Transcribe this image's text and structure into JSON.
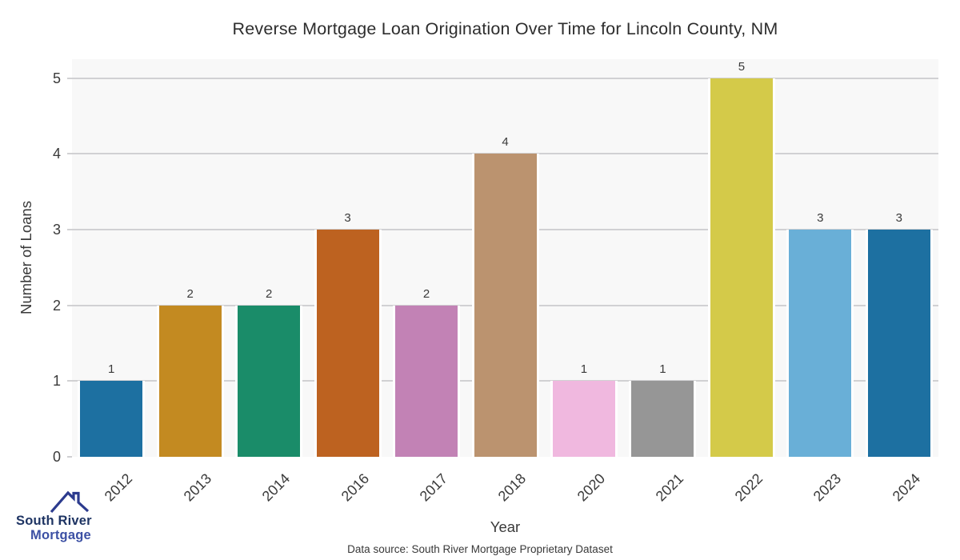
{
  "chart_data": {
    "type": "bar",
    "title": "Reverse Mortgage Loan Origination Over Time for Lincoln County, NM",
    "xlabel": "Year",
    "ylabel": "Number of Loans",
    "categories": [
      "2012",
      "2013",
      "2014",
      "2016",
      "2017",
      "2018",
      "2020",
      "2021",
      "2022",
      "2023",
      "2024"
    ],
    "values": [
      1,
      2,
      2,
      3,
      2,
      4,
      1,
      1,
      5,
      3,
      3
    ],
    "bar_colors": [
      "#1d70a1",
      "#c38a21",
      "#1a8c69",
      "#bd6220",
      "#c282b5",
      "#bb936f",
      "#f0b8df",
      "#969696",
      "#d4ca49",
      "#69afd7",
      "#1d70a1"
    ],
    "ylim": [
      0,
      5
    ],
    "yticks": [
      0,
      1,
      2,
      3,
      4,
      5
    ],
    "grid": "horizontal",
    "legend": "none",
    "bar_value_labels_shown": true,
    "xtick_rotation_deg": 45
  },
  "colors": {
    "figure_background": "#ffffff",
    "plot_background": "#f8f8f8",
    "gridline": "#d1d1d3",
    "tick_text": "#3a3a3a",
    "title_text": "#2d2d2d",
    "logo_navy": "#1e3463",
    "logo_indigo": "#3c50a4",
    "logo_roof_stroke": "#2c3b8e"
  },
  "logo": {
    "icon": "house-roof-icon",
    "line1": "South River",
    "line2": "Mortgage"
  },
  "footer": {
    "source": "Data source: South River Mortgage Proprietary Dataset"
  }
}
